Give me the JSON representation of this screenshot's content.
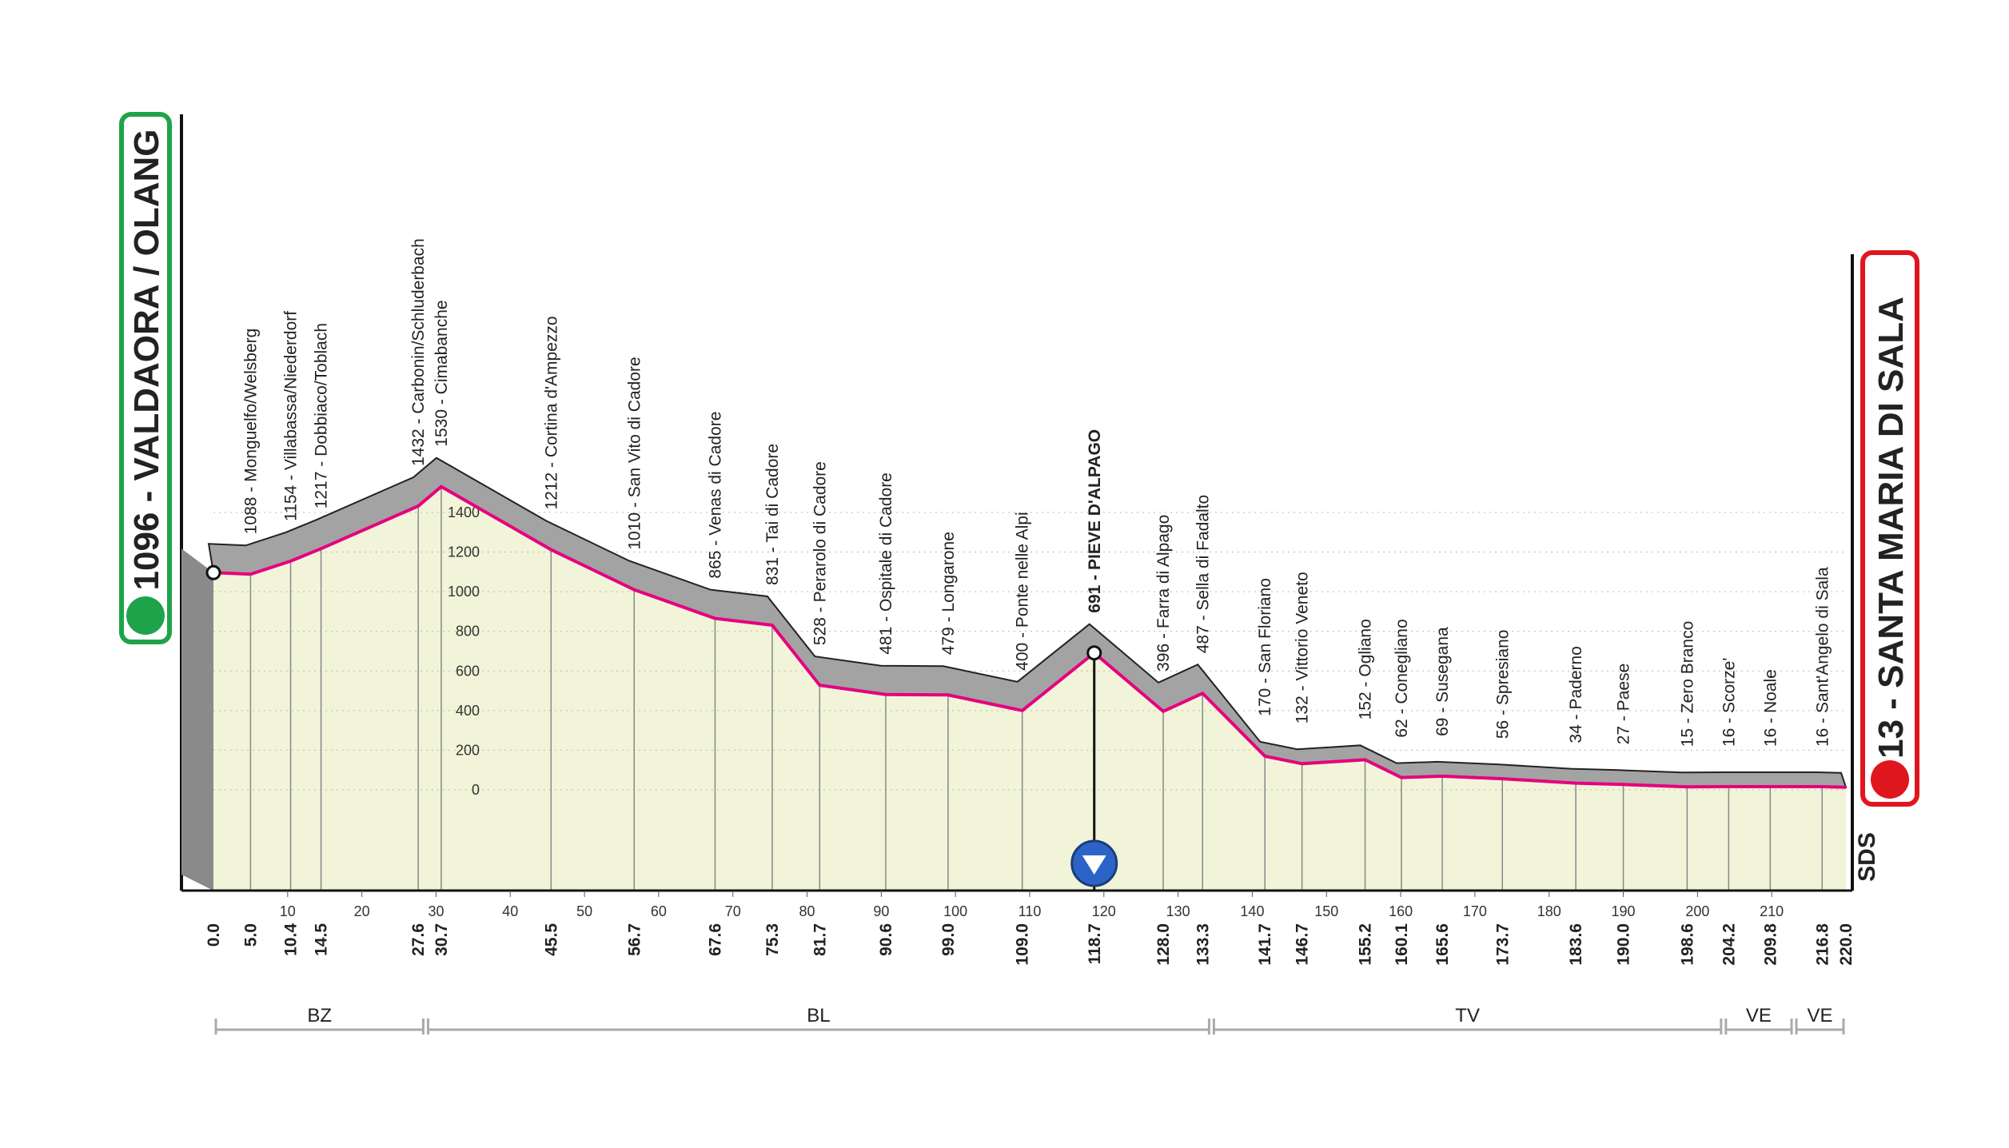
{
  "chart_data": {
    "type": "area",
    "x": [
      0.0,
      5.0,
      10.4,
      14.5,
      27.6,
      30.7,
      45.5,
      56.7,
      67.6,
      75.3,
      81.7,
      90.6,
      99.0,
      109.0,
      118.7,
      128.0,
      133.3,
      141.7,
      146.7,
      155.2,
      160.1,
      165.6,
      173.7,
      183.6,
      190.0,
      198.6,
      204.2,
      209.8,
      216.8,
      220.0
    ],
    "x_labels": [
      "0.0",
      "5.0",
      "10.4",
      "14.5",
      "27.6",
      "30.7",
      "45.5",
      "56.7",
      "67.6",
      "75.3",
      "81.7",
      "90.6",
      "99.0",
      "109.0",
      "118.7",
      "128.0",
      "133.3",
      "141.7",
      "146.7",
      "155.2",
      "160.1",
      "165.6",
      "173.7",
      "183.6",
      "190.0",
      "198.6",
      "204.2",
      "209.8",
      "216.8",
      "220.0"
    ],
    "values": [
      1096,
      1088,
      1154,
      1217,
      1432,
      1530,
      1212,
      1010,
      865,
      831,
      528,
      481,
      479,
      400,
      691,
      396,
      487,
      170,
      132,
      152,
      62,
      69,
      56,
      34,
      27,
      15,
      16,
      16,
      16,
      13
    ],
    "point_labels": [
      "1096 - VALDAORA / OLANG",
      "1088 - Monguelfo/Welsberg",
      "1154 - Villabassa/Niederdorf",
      "1217 - Dobbiaco/Toblach",
      "1432 - Carbonin/Schluderbach",
      "1530 - Cimabanche",
      "1212 - Cortina d'Ampezzo",
      "1010 - San Vito di Cadore",
      "865 - Venas di Cadore",
      "831 - Tai di Cadore",
      "528 - Perarolo di Cadore",
      "481 - Ospitale di Cadore",
      "479 - Longarone",
      "400 - Ponte nelle Alpi",
      "691 - PIEVE D'ALPAGO",
      "396 - Farra di Alpago",
      "487 - Sella di Fadalto",
      "170 - San Floriano",
      "132 - Vittorio Veneto",
      "152 - Ogliano",
      "62 - Conegliano",
      "69 - Susegana",
      "56 - Spresiano",
      "34 - Paderno",
      "27 - Paese",
      "15 - Zero Branco",
      "16 - Scorze'",
      "16 - Noale",
      "16 - Sant'Angelo di Sala",
      "13 - SANTA MARIA DI SALA"
    ],
    "bold_points": [
      14
    ],
    "color": "#e6007e",
    "xlim": [
      0,
      220
    ],
    "xticks": [
      10,
      20,
      30,
      40,
      50,
      60,
      70,
      80,
      90,
      100,
      110,
      120,
      130,
      140,
      150,
      160,
      170,
      180,
      190,
      200,
      210
    ],
    "yticks": [
      0,
      200,
      400,
      600,
      800,
      1000,
      1200,
      1400
    ],
    "regions": [
      {
        "name": "BZ",
        "from": 0,
        "to": 28.6
      },
      {
        "name": "BL",
        "from": 28.6,
        "to": 134.5
      },
      {
        "name": "TV",
        "from": 134.5,
        "to": 203.5
      },
      {
        "name": "VE",
        "from": 203.5,
        "to": 213
      },
      {
        "name": "VE",
        "from": 213,
        "to": 220
      }
    ],
    "logo": "SDS"
  }
}
